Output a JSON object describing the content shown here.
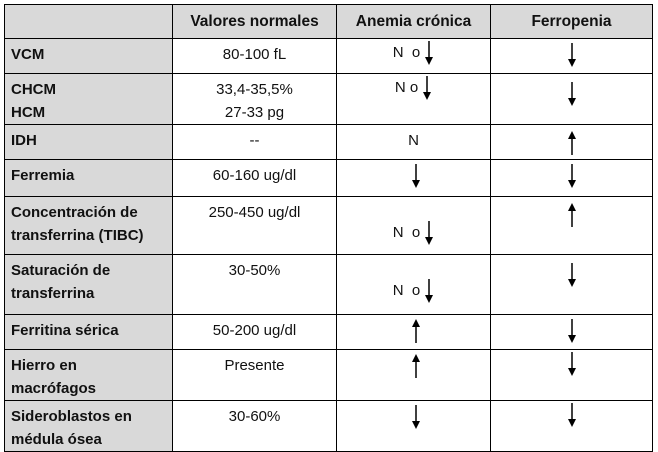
{
  "headers": [
    "",
    "Valores normales",
    "Anemia crónica",
    "Ferropenia"
  ],
  "rows": [
    {
      "label": "VCM",
      "normal": "80-100 fL",
      "anemia": {
        "text": "N  o",
        "arrow": "down"
      },
      "ferro": {
        "arrow": "down"
      }
    },
    {
      "label": "CHCM",
      "label2": "HCM",
      "normal": "33,4-35,5%",
      "normal2": "27-33 pg",
      "anemia": {
        "text": "N o",
        "arrow": "down"
      },
      "ferro": {
        "arrow": "down"
      }
    },
    {
      "label": "IDH",
      "normal": "--",
      "anemia": {
        "text": "N",
        "arrow": ""
      },
      "ferro": {
        "arrow": "up"
      }
    },
    {
      "label": "Ferremia",
      "normal": "60-160 ug/dl",
      "anemia": {
        "text": "",
        "arrow": "down"
      },
      "ferro": {
        "arrow": "down"
      }
    },
    {
      "label": "Concentración de",
      "label2": "transferrina (TIBC)",
      "normal": "250-450 ug/dl",
      "anemia": {
        "text": "N  o",
        "arrow": "down"
      },
      "ferro": {
        "arrow": "up"
      }
    },
    {
      "label": "Saturación de",
      "label2": "transferrina",
      "normal": "30-50%",
      "anemia": {
        "text": "N  o",
        "arrow": "down"
      },
      "ferro": {
        "arrow": "down"
      }
    },
    {
      "label": "Ferritina sérica",
      "normal": "50-200 ug/dl",
      "anemia": {
        "text": "",
        "arrow": "up"
      },
      "ferro": {
        "arrow": "down"
      }
    },
    {
      "label": "Hierro en",
      "label2": "macrófagos",
      "normal": "Presente",
      "anemia": {
        "text": "",
        "arrow": "up"
      },
      "ferro": {
        "arrow": "down"
      }
    },
    {
      "label": "Sideroblastos en",
      "label2": "médula ósea",
      "normal": "30-60%",
      "anemia": {
        "text": "",
        "arrow": "down"
      },
      "ferro": {
        "arrow": "down"
      }
    }
  ]
}
